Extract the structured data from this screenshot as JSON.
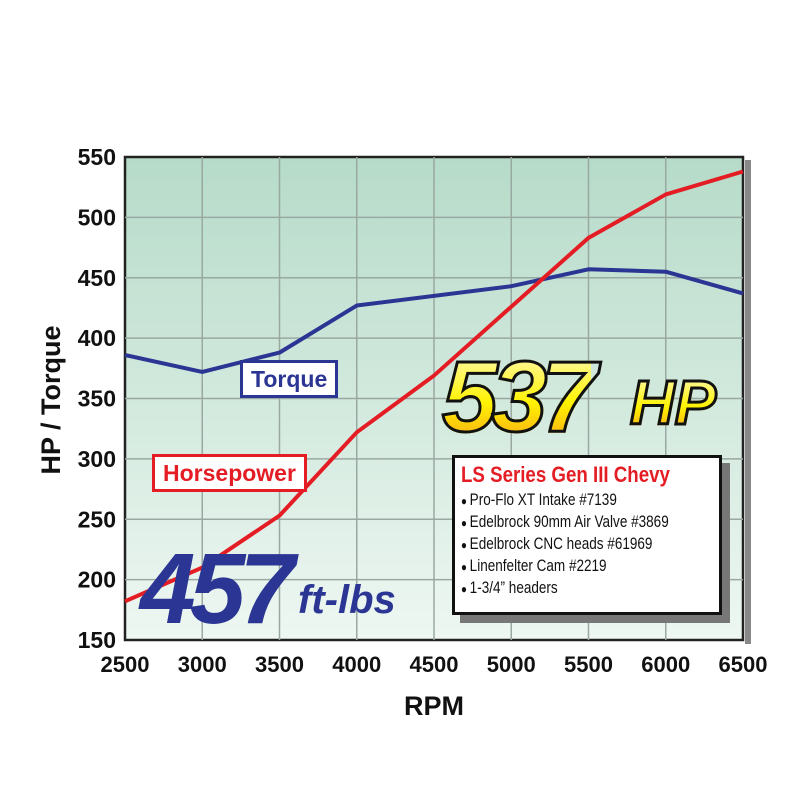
{
  "chart_data": {
    "type": "line",
    "xlabel": "RPM",
    "ylabel": "HP / Torque",
    "xlim": [
      2500,
      6500
    ],
    "ylim": [
      150,
      550
    ],
    "xticks": [
      2500,
      3000,
      3500,
      4000,
      4500,
      5000,
      5500,
      6000,
      6500
    ],
    "yticks": [
      150,
      200,
      250,
      300,
      350,
      400,
      450,
      500,
      550
    ],
    "grid": true,
    "series": [
      {
        "name": "Torque",
        "color": "#2b3593",
        "x": [
          2500,
          3000,
          3500,
          4000,
          5000,
          5500,
          6000,
          6500
        ],
        "y": [
          386,
          372,
          388,
          427,
          443,
          457,
          455,
          437
        ]
      },
      {
        "name": "Horsepower",
        "color": "#e41d25",
        "x": [
          2500,
          3000,
          3500,
          4000,
          4500,
          5000,
          5500,
          6000,
          6500
        ],
        "y": [
          182,
          210,
          253,
          322,
          369,
          426,
          483,
          519,
          538
        ]
      }
    ],
    "annotations": {
      "peak_hp_value": "537",
      "peak_hp_unit": "HP",
      "peak_torque_value": "457",
      "peak_torque_unit": "ft-lbs"
    },
    "info_box": {
      "title": "LS Series Gen III Chevy",
      "items": [
        "Pro-Flo XT Intake #7139",
        "Edelbrock 90mm Air Valve #3869",
        "Edelbrock CNC heads #61969",
        "Linenfelter Cam #2219",
        "1-3/4” headers"
      ]
    }
  }
}
